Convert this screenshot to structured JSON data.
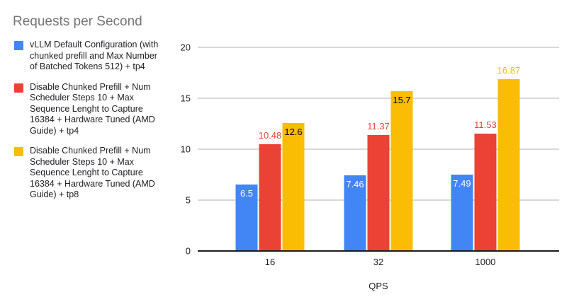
{
  "title": "Requests per Second",
  "legend": {
    "position": "left",
    "items": [
      {
        "label": "vLLM Default Configuration (with\nchunked prefill and Max Number\nof Batched Tokens 512) + tp4",
        "color": "#4285F4"
      },
      {
        "label": "Disable Chunked Prefill + Num\nScheduler Steps 10 + Max\nSequence Lenght to Capture\n16384 + Hardware Tuned (AMD\nGuide) + tp4",
        "color": "#EA4335"
      },
      {
        "label": "Disable Chunked Prefill + Num\nScheduler Steps 10 + Max\nSequence Lenght to Capture\n16384 + Hardware Tuned (AMD\nGuide) + tp8",
        "color": "#FBBC04"
      }
    ]
  },
  "chart_data": {
    "type": "bar",
    "title": "Requests per Second",
    "categories": [
      "16",
      "32",
      "1000"
    ],
    "series": [
      {
        "name": "vLLM Default Configuration (with chunked prefill and Max Number of Batched Tokens 512) + tp4",
        "color": "#4285F4",
        "values": [
          6.5,
          7.46,
          7.49
        ],
        "label_position": "inside",
        "label_color": "#ffffff"
      },
      {
        "name": "Disable Chunked Prefill + Num Scheduler Steps 10 + Max Sequence Lenght to Capture 16384 + Hardware Tuned (AMD Guide) + tp4",
        "color": "#EA4335",
        "values": [
          10.48,
          11.37,
          11.53
        ],
        "label_position": "above",
        "label_color": "#EA4335"
      },
      {
        "name": "Disable Chunked Prefill + Num Scheduler Steps 10 + Max Sequence Lenght to Capture 16384 + Hardware Tuned (AMD Guide) + tp8",
        "color": "#FBBC04",
        "values": [
          12.6,
          15.7,
          16.87
        ],
        "label_position": "inside",
        "label_color": "#000000",
        "label_overrides": {
          "2": {
            "position": "above",
            "color": "#FBBC04"
          }
        }
      }
    ],
    "xlabel": "QPS",
    "ylabel": "",
    "ylim": [
      0,
      20
    ],
    "yticks": [
      0,
      5,
      10,
      15,
      20
    ],
    "grid": true,
    "legend_position": "left",
    "colors": {
      "title_text": "#757575",
      "axis_text": "#202124",
      "gridline": "#d9d9d9",
      "baseline": "#1c1c1c",
      "background": "#ffffff"
    },
    "layout": {
      "group_center_pct": [
        20,
        50,
        79.6
      ]
    }
  }
}
